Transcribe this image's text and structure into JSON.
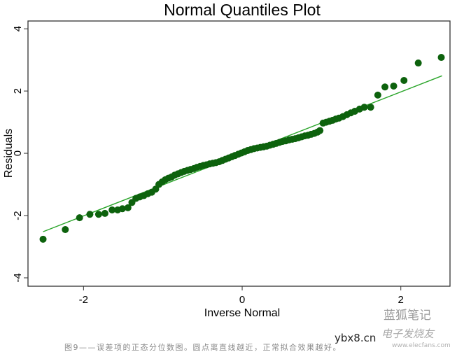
{
  "chart_data": {
    "type": "scatter",
    "title": "Normal Quantiles Plot",
    "xlabel": "Inverse Normal",
    "ylabel": "Residuals",
    "xlim": [
      -2.7,
      2.62
    ],
    "ylim": [
      -4.27,
      4.25
    ],
    "xticks": [
      -2,
      0,
      2
    ],
    "yticks": [
      -4,
      -2,
      0,
      2,
      4
    ],
    "grid": false,
    "point_color": "#0d620d",
    "line_color": "#2aa52a",
    "reference_line": {
      "x": [
        -2.51,
        2.52
      ],
      "y": [
        -2.52,
        2.49
      ]
    },
    "points": [
      [
        -2.51,
        -2.76
      ],
      [
        -2.23,
        -2.45
      ],
      [
        -2.05,
        -2.07
      ],
      [
        -1.92,
        -1.96
      ],
      [
        -1.81,
        -1.96
      ],
      [
        -1.73,
        -1.93
      ],
      [
        -1.64,
        -1.82
      ],
      [
        -1.57,
        -1.82
      ],
      [
        -1.51,
        -1.78
      ],
      [
        -1.44,
        -1.75
      ],
      [
        -1.39,
        -1.58
      ],
      [
        -1.34,
        -1.45
      ],
      [
        -1.29,
        -1.4
      ],
      [
        -1.24,
        -1.36
      ],
      [
        -1.19,
        -1.3
      ],
      [
        -1.14,
        -1.25
      ],
      [
        -1.09,
        -1.15
      ],
      [
        -1.05,
        -1.0
      ],
      [
        -1.01,
        -0.92
      ],
      [
        -0.97,
        -0.85
      ],
      [
        -0.93,
        -0.8
      ],
      [
        -0.89,
        -0.76
      ],
      [
        -0.85,
        -0.7
      ],
      [
        -0.81,
        -0.66
      ],
      [
        -0.77,
        -0.62
      ],
      [
        -0.73,
        -0.58
      ],
      [
        -0.69,
        -0.55
      ],
      [
        -0.65,
        -0.52
      ],
      [
        -0.61,
        -0.49
      ],
      [
        -0.57,
        -0.45
      ],
      [
        -0.53,
        -0.42
      ],
      [
        -0.49,
        -0.39
      ],
      [
        -0.45,
        -0.37
      ],
      [
        -0.41,
        -0.34
      ],
      [
        -0.37,
        -0.32
      ],
      [
        -0.33,
        -0.3
      ],
      [
        -0.29,
        -0.27
      ],
      [
        -0.25,
        -0.23
      ],
      [
        -0.21,
        -0.19
      ],
      [
        -0.17,
        -0.15
      ],
      [
        -0.13,
        -0.11
      ],
      [
        -0.09,
        -0.07
      ],
      [
        -0.05,
        -0.03
      ],
      [
        -0.01,
        0.01
      ],
      [
        0.03,
        0.05
      ],
      [
        0.07,
        0.09
      ],
      [
        0.11,
        0.12
      ],
      [
        0.15,
        0.15
      ],
      [
        0.19,
        0.17
      ],
      [
        0.23,
        0.19
      ],
      [
        0.27,
        0.21
      ],
      [
        0.31,
        0.23
      ],
      [
        0.35,
        0.26
      ],
      [
        0.39,
        0.29
      ],
      [
        0.43,
        0.32
      ],
      [
        0.47,
        0.35
      ],
      [
        0.51,
        0.38
      ],
      [
        0.55,
        0.4
      ],
      [
        0.59,
        0.43
      ],
      [
        0.63,
        0.45
      ],
      [
        0.67,
        0.47
      ],
      [
        0.71,
        0.5
      ],
      [
        0.75,
        0.53
      ],
      [
        0.79,
        0.56
      ],
      [
        0.83,
        0.58
      ],
      [
        0.87,
        0.61
      ],
      [
        0.91,
        0.64
      ],
      [
        0.95,
        0.68
      ],
      [
        0.98,
        0.73
      ],
      [
        1.02,
        0.97
      ],
      [
        1.06,
        1.0
      ],
      [
        1.1,
        1.03
      ],
      [
        1.14,
        1.06
      ],
      [
        1.18,
        1.1
      ],
      [
        1.22,
        1.13
      ],
      [
        1.27,
        1.18
      ],
      [
        1.32,
        1.24
      ],
      [
        1.37,
        1.3
      ],
      [
        1.42,
        1.35
      ],
      [
        1.48,
        1.42
      ],
      [
        1.54,
        1.48
      ],
      [
        1.62,
        1.48
      ],
      [
        1.71,
        1.87
      ],
      [
        1.8,
        2.13
      ],
      [
        1.91,
        2.16
      ],
      [
        2.04,
        2.34
      ],
      [
        2.22,
        2.9
      ],
      [
        2.51,
        3.08
      ]
    ]
  },
  "caption": "图9——误差项的正态分位数图。圆点离直线越近，正常拟合效果越好。",
  "watermarks": {
    "wechat": "蓝狐笔记",
    "site": "ybx8.cn",
    "elecfans": "电子发烧友",
    "elecfans_url": "www.elecfans.com"
  }
}
